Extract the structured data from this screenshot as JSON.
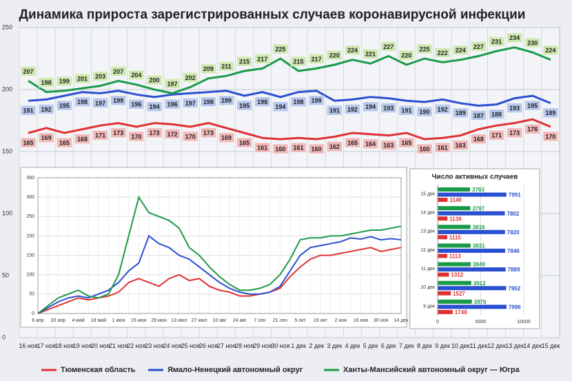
{
  "title": "Динамика прироста зарегистрированных случаев коронавирусной инфекции",
  "chart_data": [
    {
      "type": "line",
      "categories": [
        "16 ноя",
        "17 ноя",
        "18 ноя",
        "19 ноя",
        "20 ноя",
        "21 ноя",
        "22 ноя",
        "23 ноя",
        "24 ноя",
        "25 ноя",
        "26 ноя",
        "27 ноя",
        "28 ноя",
        "29 ноя",
        "30 ноя",
        "1 дек",
        "2 дек",
        "3 дек",
        "4 дек",
        "5 дек",
        "6 дек",
        "7 дек",
        "8 дек",
        "9 дек",
        "10 дек",
        "11 дек",
        "12 дек",
        "13 дек",
        "14 дек",
        "15 дек"
      ],
      "ylim": [
        0,
        250
      ],
      "yticks": [
        0,
        50,
        100,
        150,
        200,
        250
      ],
      "grid": true,
      "series": [
        {
          "name": "Тюменская область",
          "color": "#e03030",
          "label_color": "#f2b8b8",
          "values": [
            165,
            169,
            165,
            168,
            171,
            173,
            170,
            173,
            172,
            170,
            173,
            169,
            165,
            161,
            160,
            161,
            160,
            162,
            165,
            164,
            163,
            165,
            160,
            161,
            163,
            168,
            171,
            173,
            176,
            170
          ]
        },
        {
          "name": "Ямало-Ненецкий автономный округ",
          "color": "#2a4fd0",
          "label_color": "#b7c8ec",
          "values": [
            191,
            192,
            195,
            198,
            197,
            199,
            196,
            194,
            196,
            197,
            198,
            199,
            195,
            198,
            194,
            198,
            199,
            191,
            192,
            194,
            193,
            191,
            190,
            192,
            189,
            187,
            188,
            193,
            195,
            189
          ]
        },
        {
          "name": "Ханты-Мансийский автономный округ — Югра",
          "color": "#1a9a48",
          "label_color": "#cfe8b0",
          "values": [
            207,
            198,
            199,
            201,
            203,
            207,
            204,
            200,
            197,
            202,
            209,
            211,
            215,
            217,
            225,
            215,
            217,
            220,
            224,
            221,
            227,
            220,
            225,
            222,
            224,
            227,
            231,
            234,
            230,
            224
          ]
        }
      ]
    },
    {
      "type": "line",
      "categories": [
        "6 апр",
        null,
        "20 апр",
        null,
        "4 май",
        null,
        "18 май",
        null,
        "1 июн",
        null,
        "15 июн",
        null,
        "29 июн",
        null,
        "13 июл",
        null,
        "27 июл",
        null,
        "10 авг",
        null,
        "24 авг",
        null,
        "7 сен",
        null,
        "21 сен",
        null,
        "5 окт",
        null,
        "19 окт",
        null,
        "2 ноя",
        null,
        "16 ноя",
        null,
        "30 ноя",
        null,
        "14 дек"
      ],
      "ylim": [
        0,
        350
      ],
      "yticks": [
        0,
        50,
        100,
        150,
        200,
        250,
        300,
        350
      ],
      "grid": true,
      "series": [
        {
          "color": "#e03030",
          "values": [
            0,
            10,
            20,
            30,
            40,
            35,
            40,
            45,
            55,
            80,
            90,
            80,
            70,
            90,
            100,
            85,
            90,
            70,
            60,
            55,
            45,
            45,
            50,
            55,
            65,
            95,
            120,
            140,
            150,
            150,
            155,
            160,
            165,
            170,
            160,
            165,
            170
          ]
        },
        {
          "color": "#2a4fd0",
          "values": [
            0,
            15,
            30,
            40,
            45,
            40,
            50,
            60,
            80,
            110,
            130,
            200,
            180,
            170,
            150,
            140,
            120,
            100,
            80,
            65,
            55,
            50,
            50,
            55,
            70,
            110,
            150,
            170,
            175,
            180,
            185,
            195,
            192,
            198,
            190,
            193,
            190
          ]
        },
        {
          "color": "#1a9a48",
          "values": [
            0,
            20,
            40,
            50,
            60,
            45,
            40,
            50,
            100,
            200,
            300,
            260,
            250,
            240,
            220,
            170,
            150,
            120,
            95,
            75,
            60,
            60,
            65,
            75,
            100,
            140,
            190,
            195,
            195,
            200,
            200,
            205,
            210,
            215,
            215,
            220,
            225
          ]
        }
      ]
    },
    {
      "type": "hbar",
      "title": "Число активных случаев",
      "categories": [
        "15 дек",
        "14 дек",
        "13 дек",
        "12 дек",
        "11 дек",
        "10 дек",
        "9 дек"
      ],
      "xlim": [
        0,
        10000
      ],
      "xticks": [
        0,
        5000,
        10000
      ],
      "grid": true,
      "series": [
        {
          "color": "#1a9a48",
          "values": [
            3763,
            3797,
            3816,
            3831,
            3849,
            3912,
            3970
          ]
        },
        {
          "color": "#2a4fd0",
          "values": [
            7991,
            7802,
            7820,
            7846,
            7889,
            7952,
            7996
          ]
        },
        {
          "color": "#e03030",
          "values": [
            1149,
            1139,
            1115,
            1113,
            1312,
            1527,
            1748
          ]
        }
      ]
    }
  ]
}
